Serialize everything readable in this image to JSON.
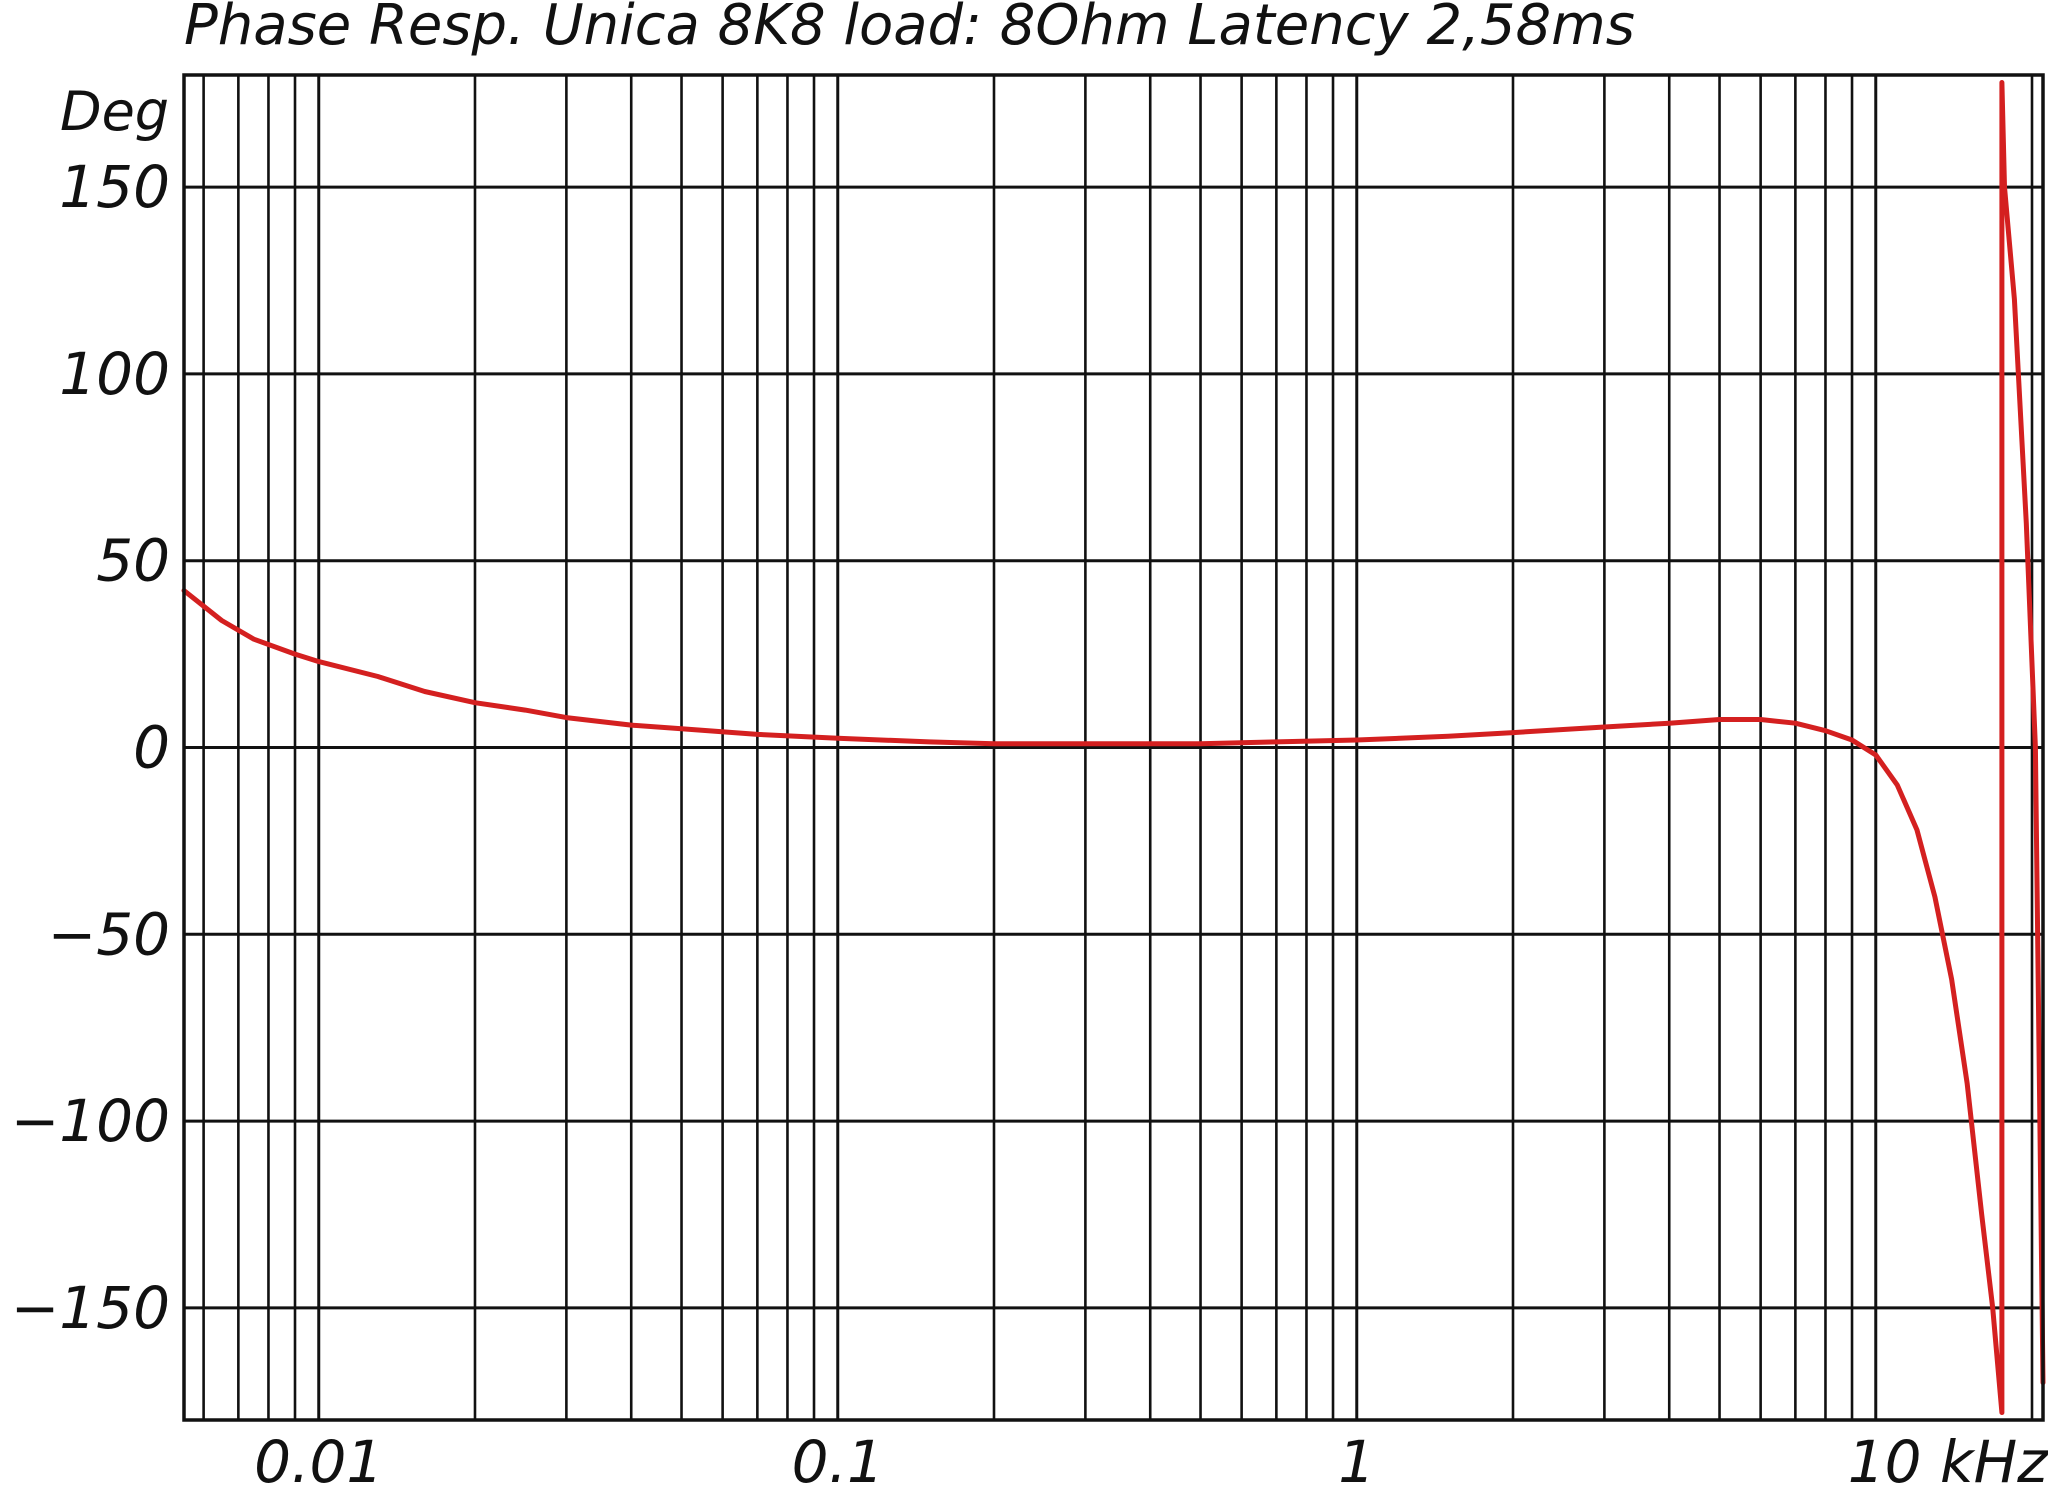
{
  "chart_data": {
    "type": "line",
    "title": "Phase Resp. Unica 8K8 load: 8Ohm  Latency 2,58ms",
    "ylabel": "Deg",
    "xlabel": "",
    "x_scale": "log",
    "xlim": [
      0.0055,
      21
    ],
    "ylim": [
      -180,
      180
    ],
    "grid": true,
    "x_ticks": [
      {
        "value": 0.01,
        "label": "0.01"
      },
      {
        "value": 0.1,
        "label": "0.1"
      },
      {
        "value": 1,
        "label": "1"
      },
      {
        "value": 10,
        "label": "10 kHz"
      }
    ],
    "y_ticks": [
      {
        "value": 150,
        "label": "150"
      },
      {
        "value": 100,
        "label": "100"
      },
      {
        "value": 50,
        "label": "50"
      },
      {
        "value": 0,
        "label": "0"
      },
      {
        "value": -50,
        "label": "−50"
      },
      {
        "value": -100,
        "label": "−100"
      },
      {
        "value": -150,
        "label": "−150"
      }
    ],
    "series": [
      {
        "color": "#d42020",
        "points": [
          [
            0.0055,
            42
          ],
          [
            0.0065,
            34
          ],
          [
            0.0075,
            29
          ],
          [
            0.009,
            25
          ],
          [
            0.01,
            23
          ],
          [
            0.013,
            19
          ],
          [
            0.016,
            15
          ],
          [
            0.02,
            12
          ],
          [
            0.025,
            10
          ],
          [
            0.03,
            8
          ],
          [
            0.04,
            6
          ],
          [
            0.05,
            5
          ],
          [
            0.07,
            3.5
          ],
          [
            0.1,
            2.5
          ],
          [
            0.15,
            1.5
          ],
          [
            0.2,
            1
          ],
          [
            0.3,
            1
          ],
          [
            0.5,
            1
          ],
          [
            0.7,
            1.5
          ],
          [
            1,
            2
          ],
          [
            1.5,
            3
          ],
          [
            2,
            4
          ],
          [
            3,
            5.5
          ],
          [
            4,
            6.5
          ],
          [
            5,
            7.5
          ],
          [
            6,
            7.5
          ],
          [
            7,
            6.5
          ],
          [
            8,
            4.5
          ],
          [
            9,
            2
          ],
          [
            10,
            -2
          ],
          [
            11,
            -10
          ],
          [
            12,
            -22
          ],
          [
            13,
            -40
          ],
          [
            14,
            -62
          ],
          [
            15,
            -90
          ],
          [
            16,
            -125
          ],
          [
            16.8,
            -150
          ],
          [
            17.5,
            -178
          ],
          [
            17.5,
            178
          ],
          [
            17.7,
            150
          ],
          [
            18.5,
            120
          ],
          [
            19.5,
            60
          ],
          [
            20.3,
            0
          ],
          [
            21,
            -170
          ]
        ]
      }
    ]
  }
}
